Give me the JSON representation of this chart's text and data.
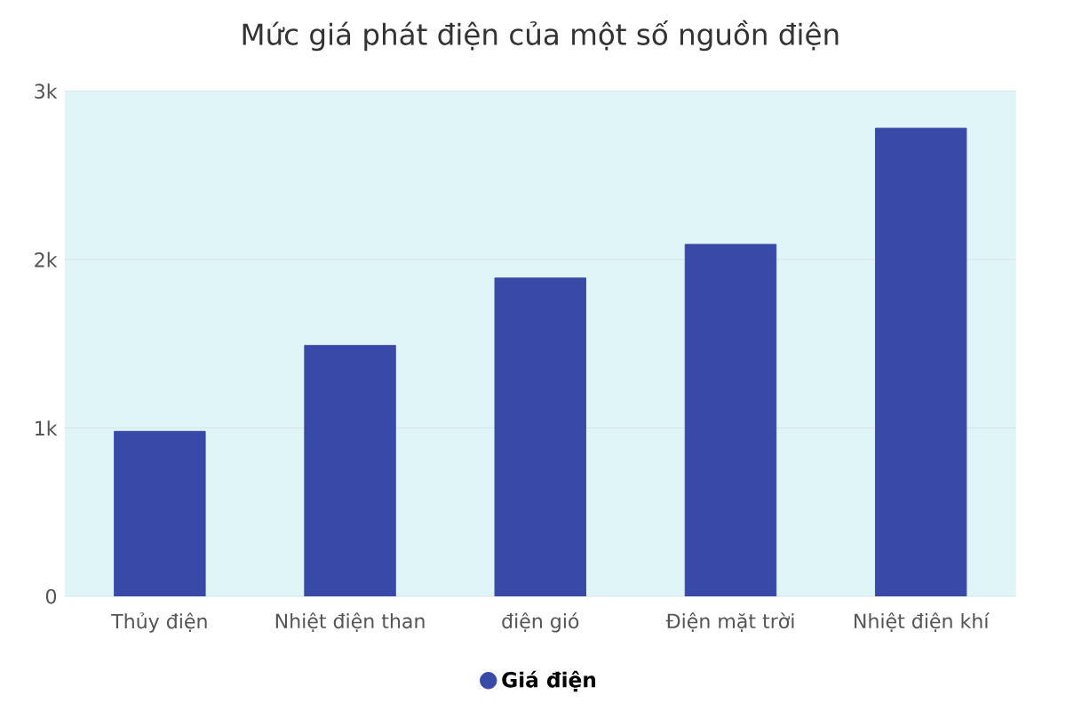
{
  "chart_data": {
    "type": "bar",
    "title": "Mức giá phát điện của một số nguồn điện",
    "categories": [
      "Thủy điện",
      "Nhiệt điện than",
      "điện gió",
      "Điện mặt trời",
      "Nhiệt điện khí"
    ],
    "series": [
      {
        "name": "Giá điện",
        "color": "#3949a8",
        "values": [
          980,
          1490,
          1890,
          2090,
          2780
        ]
      }
    ],
    "ylim": [
      0,
      3000
    ],
    "yticks": [
      0,
      {
        "value": 1000,
        "label": "1k"
      },
      {
        "value": 2000,
        "label": "2k"
      },
      {
        "value": 3000,
        "label": "3k"
      }
    ],
    "grid": "y",
    "legend": "bottom"
  }
}
